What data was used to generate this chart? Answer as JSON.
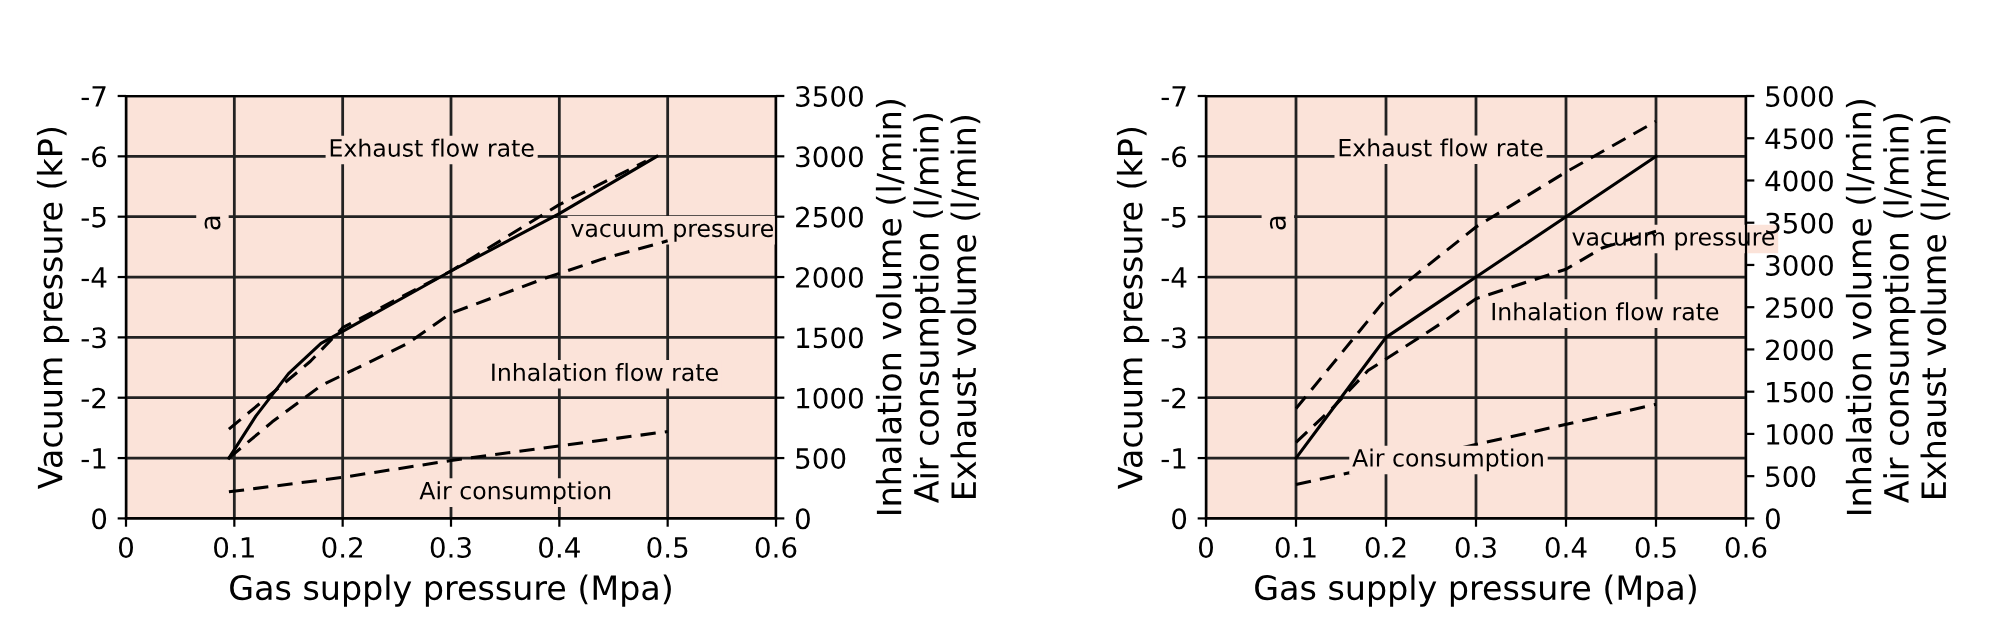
{
  "chart_data": [
    {
      "type": "line",
      "xlabel": "Gas supply pressure (Mpa)",
      "ylabel": "Vacuum pressure (kP)",
      "y2label": "Inhalation volume (l/min)\nAir consumption (l/min)\nExhaust volume (l/min)",
      "xlim": [
        0,
        0.6
      ],
      "xticks": [
        0,
        0.1,
        0.2,
        0.3,
        0.4,
        0.5,
        0.6
      ],
      "ylim": [
        0,
        -7
      ],
      "yticks": [
        -7,
        -6,
        -5,
        -4,
        -3,
        -2,
        -1,
        0
      ],
      "y2lim": [
        0,
        3500
      ],
      "y2ticks": [
        0,
        500,
        1000,
        1500,
        2000,
        2500,
        3000,
        3500
      ],
      "grid": true,
      "legend": false,
      "marker": "none",
      "annotations": [
        "a"
      ],
      "series": [
        {
          "name": "vacuum pressure",
          "color": "#000000",
          "line_style": "solid",
          "x": [
            0.095,
            0.12,
            0.15,
            0.18,
            0.2,
            0.3,
            0.4,
            0.49
          ],
          "values": [
            -1,
            -1.7,
            -2.4,
            -2.9,
            -3.1,
            -4.1,
            -5.05,
            -6.0
          ]
        },
        {
          "name": "Exhaust flow rate",
          "color": "#000000",
          "line_style": "dashed",
          "axis": "y2",
          "x": [
            0.095,
            0.13,
            0.17,
            0.2,
            0.3,
            0.4,
            0.48
          ],
          "values": [
            740,
            1000,
            1300,
            1580,
            2050,
            2600,
            2960
          ]
        },
        {
          "name": "Inhalation flow rate",
          "color": "#000000",
          "line_style": "dashed",
          "axis": "y2",
          "x": [
            0.095,
            0.135,
            0.18,
            0.26,
            0.3,
            0.39,
            0.44,
            0.5
          ],
          "values": [
            500,
            800,
            1100,
            1450,
            1700,
            2000,
            2150,
            2300
          ]
        },
        {
          "name": "Air consumption",
          "color": "#000000",
          "line_style": "dashed",
          "axis": "y2",
          "x": [
            0.095,
            0.2,
            0.3,
            0.4,
            0.5
          ],
          "values": [
            220,
            340,
            480,
            600,
            720
          ]
        }
      ]
    },
    {
      "type": "line",
      "xlabel": "Gas supply pressure (Mpa)",
      "ylabel": "Vacuum pressure (kP)",
      "y2label": "Inhalation volume (l/min)\nAir consumption (l/min)\nExhaust volume (l/min)",
      "xlim": [
        0,
        0.6
      ],
      "xticks": [
        0,
        0.1,
        0.2,
        0.3,
        0.4,
        0.5,
        0.6
      ],
      "ylim": [
        0,
        -7
      ],
      "yticks": [
        -7,
        -6,
        -5,
        -4,
        -3,
        -2,
        -1,
        0
      ],
      "y2lim": [
        0,
        5000
      ],
      "y2ticks": [
        0,
        500,
        1000,
        1500,
        2000,
        2500,
        3000,
        3500,
        4000,
        4500,
        5000
      ],
      "grid": true,
      "legend": false,
      "marker": "none",
      "annotations": [
        "a"
      ],
      "series": [
        {
          "name": "vacuum pressure",
          "color": "#000000",
          "line_style": "solid",
          "x": [
            0.1,
            0.14,
            0.18,
            0.2,
            0.27,
            0.3,
            0.4,
            0.5
          ],
          "values": [
            -1,
            -1.8,
            -2.6,
            -3.0,
            -3.7,
            -4.0,
            -5.0,
            -6.0
          ]
        },
        {
          "name": "Exhaust flow rate",
          "color": "#000000",
          "line_style": "dashed",
          "axis": "y2",
          "x": [
            0.1,
            0.2,
            0.3,
            0.4,
            0.5
          ],
          "values": [
            1300,
            2600,
            3450,
            4100,
            4700
          ]
        },
        {
          "name": "Inhalation flow rate",
          "color": "#000000",
          "line_style": "dashed",
          "axis": "y2",
          "x": [
            0.1,
            0.14,
            0.18,
            0.26,
            0.3,
            0.4,
            0.44,
            0.5
          ],
          "values": [
            900,
            1300,
            1750,
            2300,
            2600,
            2950,
            3200,
            3400
          ]
        },
        {
          "name": "Air consumption",
          "color": "#000000",
          "line_style": "dashed",
          "axis": "y2",
          "x": [
            0.1,
            0.5
          ],
          "values": [
            400,
            1350
          ]
        }
      ]
    }
  ]
}
